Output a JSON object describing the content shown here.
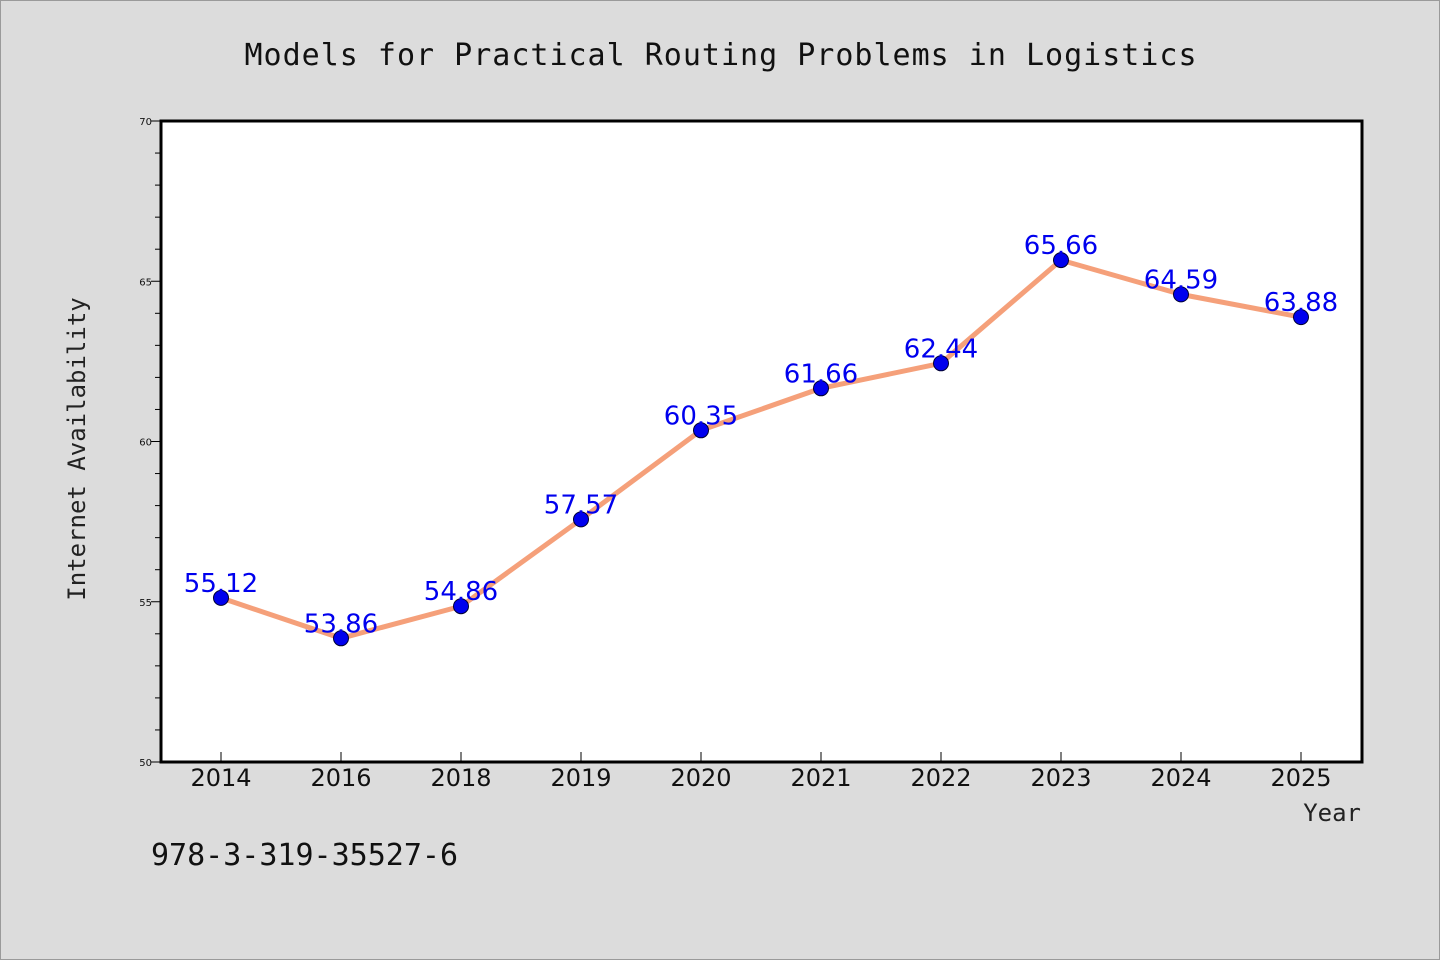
{
  "chart_data": {
    "type": "line",
    "title": "Models for Practical Routing Problems in Logistics",
    "xlabel": "Year",
    "ylabel": "Internet Availability",
    "categories": [
      "2014",
      "2016",
      "2018",
      "2019",
      "2020",
      "2021",
      "2022",
      "2023",
      "2024",
      "2025"
    ],
    "series": [
      {
        "values": [
          55.12,
          53.86,
          54.86,
          57.57,
          60.35,
          61.66,
          62.44,
          65.66,
          64.59,
          63.88
        ],
        "line_color": "#f5a07a",
        "marker_color": "#0000ee"
      }
    ],
    "data_labels": [
      "55.12",
      "53.86",
      "54.86",
      "57.57",
      "60.35",
      "61.66",
      "62.44",
      "65.66",
      "64.59",
      "63.88"
    ],
    "label_color": "#0000ee",
    "ylim": [
      50,
      70
    ],
    "y_ticks": [
      50,
      55,
      60,
      65,
      70
    ],
    "y_tick_labels": [
      "50",
      "55",
      "60",
      "65",
      "70"
    ],
    "grid": false,
    "legend": "none"
  },
  "footer": {
    "identifier": "978-3-319-35527-6"
  },
  "colors": {
    "page_background": "#dcdcdc",
    "plot_background": "#ffffff",
    "line": "#f5a07a",
    "markers": "#0000ee",
    "data_labels": "#0000ee"
  }
}
